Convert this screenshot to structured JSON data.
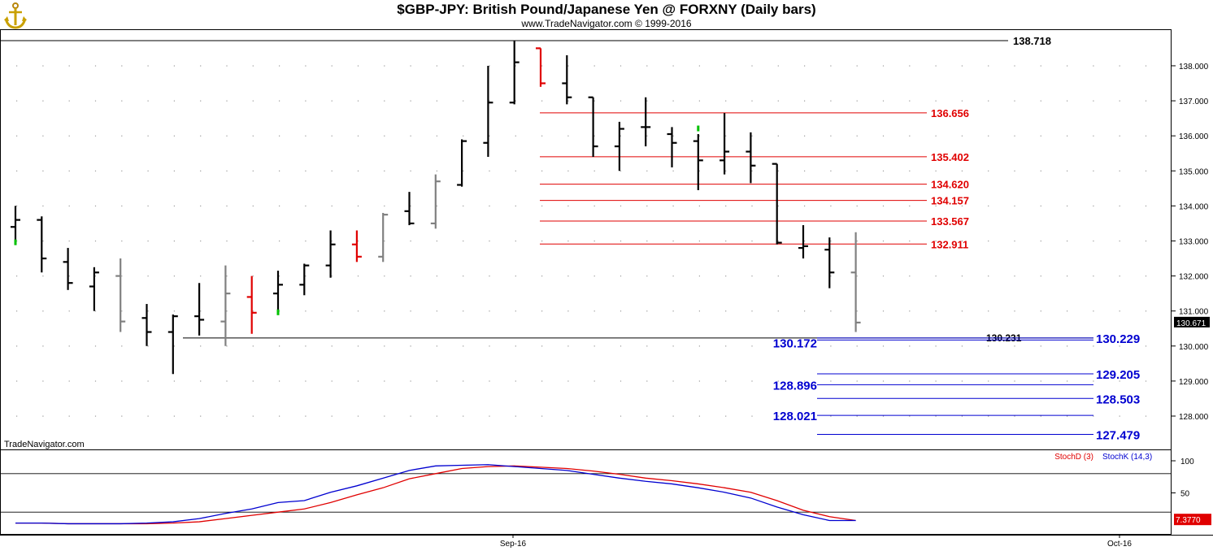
{
  "header": {
    "title": "$GBP-JPY:  British Pound/Japanese Yen @ FORXNY  (Daily bars)",
    "subtitle": "www.TradeNavigator.com © 1999-2016",
    "watermark": "TradeNavigator.com"
  },
  "colors": {
    "up": "#000000",
    "down_gray": "#808080",
    "red": "#e00000",
    "blue": "#0000d0",
    "green": "#00c000",
    "stochD": "#e00000",
    "stochK": "#0000d0"
  },
  "chart_data": [
    {
      "type": "ohlc",
      "ylim": [
        127.35,
        138.95
      ],
      "yticks": [
        "131.000",
        "132.000",
        "133.000",
        "134.000",
        "135.000",
        "136.000",
        "137.000",
        "138.000"
      ],
      "yticks_extra": [
        "130.000",
        "129.000",
        "128.000"
      ],
      "last_price": "130.671",
      "bars": [
        {
          "o": 133.4,
          "h": 134.0,
          "l": 133.0,
          "c": 133.6,
          "col": "up"
        },
        {
          "o": 133.6,
          "h": 133.7,
          "l": 132.1,
          "c": 132.5,
          "col": "up"
        },
        {
          "o": 132.4,
          "h": 132.8,
          "l": 131.6,
          "c": 131.8,
          "col": "up"
        },
        {
          "o": 131.7,
          "h": 132.25,
          "l": 131.0,
          "c": 132.1,
          "col": "up"
        },
        {
          "o": 132.0,
          "h": 132.5,
          "l": 130.4,
          "c": 130.7,
          "col": "gray"
        },
        {
          "o": 130.8,
          "h": 131.2,
          "l": 130.0,
          "c": 130.4,
          "col": "up"
        },
        {
          "o": 130.4,
          "h": 130.9,
          "l": 129.2,
          "c": 130.85,
          "col": "up"
        },
        {
          "o": 130.85,
          "h": 131.8,
          "l": 130.3,
          "c": 130.75,
          "col": "up"
        },
        {
          "o": 130.7,
          "h": 132.3,
          "l": 130.0,
          "c": 131.5,
          "col": "gray"
        },
        {
          "o": 131.4,
          "h": 132.0,
          "l": 130.35,
          "c": 130.95,
          "col": "red"
        },
        {
          "o": 131.5,
          "h": 132.15,
          "l": 131.0,
          "c": 131.75,
          "col": "up"
        },
        {
          "o": 131.75,
          "h": 132.35,
          "l": 131.45,
          "c": 132.3,
          "col": "up"
        },
        {
          "o": 132.3,
          "h": 133.3,
          "l": 131.95,
          "c": 132.9,
          "col": "up"
        },
        {
          "o": 132.9,
          "h": 133.3,
          "l": 132.4,
          "c": 132.55,
          "col": "red"
        },
        {
          "o": 132.55,
          "h": 133.8,
          "l": 132.4,
          "c": 133.75,
          "col": "gray"
        },
        {
          "o": 133.85,
          "h": 134.4,
          "l": 133.45,
          "c": 133.5,
          "col": "up"
        },
        {
          "o": 133.5,
          "h": 134.9,
          "l": 133.35,
          "c": 134.7,
          "col": "gray"
        },
        {
          "o": 134.6,
          "h": 135.9,
          "l": 134.55,
          "c": 135.85,
          "col": "up"
        },
        {
          "o": 135.8,
          "h": 138.0,
          "l": 135.4,
          "c": 136.95,
          "col": "up"
        },
        {
          "o": 136.95,
          "h": 138.72,
          "l": 136.9,
          "c": 138.1,
          "col": "up"
        },
        {
          "o": 138.5,
          "h": 138.5,
          "l": 137.4,
          "c": 137.5,
          "col": "red"
        },
        {
          "o": 137.5,
          "h": 138.3,
          "l": 136.9,
          "c": 137.1,
          "col": "up"
        },
        {
          "o": 137.1,
          "h": 137.1,
          "l": 135.4,
          "c": 135.7,
          "col": "up"
        },
        {
          "o": 135.7,
          "h": 136.4,
          "l": 135.0,
          "c": 136.2,
          "col": "up"
        },
        {
          "o": 136.25,
          "h": 137.1,
          "l": 135.7,
          "c": 136.25,
          "col": "up"
        },
        {
          "o": 136.05,
          "h": 136.25,
          "l": 135.1,
          "c": 135.8,
          "col": "up"
        },
        {
          "o": 135.85,
          "h": 136.05,
          "l": 134.45,
          "c": 135.3,
          "col": "up"
        },
        {
          "o": 135.3,
          "h": 136.65,
          "l": 134.9,
          "c": 135.55,
          "col": "up"
        },
        {
          "o": 135.55,
          "h": 136.1,
          "l": 134.65,
          "c": 135.15,
          "col": "up"
        },
        {
          "o": 135.2,
          "h": 135.2,
          "l": 132.9,
          "c": 132.95,
          "col": "up"
        },
        {
          "o": 132.8,
          "h": 133.45,
          "l": 132.5,
          "c": 132.85,
          "col": "up"
        },
        {
          "o": 132.75,
          "h": 133.1,
          "l": 131.65,
          "c": 132.1,
          "col": "up"
        },
        {
          "o": 132.1,
          "h": 133.25,
          "l": 130.4,
          "c": 130.67,
          "col": "gray"
        }
      ],
      "levels": [
        {
          "value": 138.718,
          "label": "138.718",
          "color": "black"
        },
        {
          "value": 136.656,
          "label": "136.656",
          "color": "red"
        },
        {
          "value": 135.402,
          "label": "135.402",
          "color": "red"
        },
        {
          "value": 134.62,
          "label": "134.620",
          "color": "red"
        },
        {
          "value": 134.157,
          "label": "134.157",
          "color": "red"
        },
        {
          "value": 133.567,
          "label": "133.567",
          "color": "red"
        },
        {
          "value": 132.911,
          "label": "132.911",
          "color": "red"
        },
        {
          "value": 130.231,
          "label": "130.231",
          "color": "black"
        },
        {
          "value": 130.229,
          "label": "130.229",
          "color": "blue"
        },
        {
          "value": 130.172,
          "label": "130.172",
          "color": "blue"
        },
        {
          "value": 129.205,
          "label": "129.205",
          "color": "blue"
        },
        {
          "value": 128.896,
          "label": "128.896",
          "color": "blue"
        },
        {
          "value": 128.503,
          "label": "128.503",
          "color": "blue"
        },
        {
          "value": 128.021,
          "label": "128.021",
          "color": "blue"
        },
        {
          "value": 127.479,
          "label": "127.479",
          "color": "blue"
        }
      ]
    },
    {
      "type": "line",
      "ylim": [
        0,
        100
      ],
      "yticks": [
        "100",
        "50"
      ],
      "last_value": "7.3770",
      "series": [
        {
          "name": "StochD (3)",
          "values": [
            3,
            3,
            2,
            2,
            2,
            2,
            3,
            5,
            10,
            15,
            20,
            25,
            35,
            47,
            58,
            72,
            80,
            88,
            91,
            92,
            90,
            88,
            84,
            79,
            73,
            69,
            64,
            58,
            51,
            38,
            23,
            13,
            7
          ]
        },
        {
          "name": "StochK (14,3)",
          "values": [
            3,
            3,
            2,
            2,
            2,
            3,
            5,
            10,
            18,
            25,
            35,
            38,
            51,
            61,
            73,
            85,
            92,
            93,
            94,
            91,
            88,
            85,
            79,
            73,
            68,
            64,
            58,
            51,
            42,
            28,
            16,
            7,
            7
          ]
        }
      ],
      "xticks": [
        "Sep-16",
        "Oct-16"
      ]
    }
  ]
}
